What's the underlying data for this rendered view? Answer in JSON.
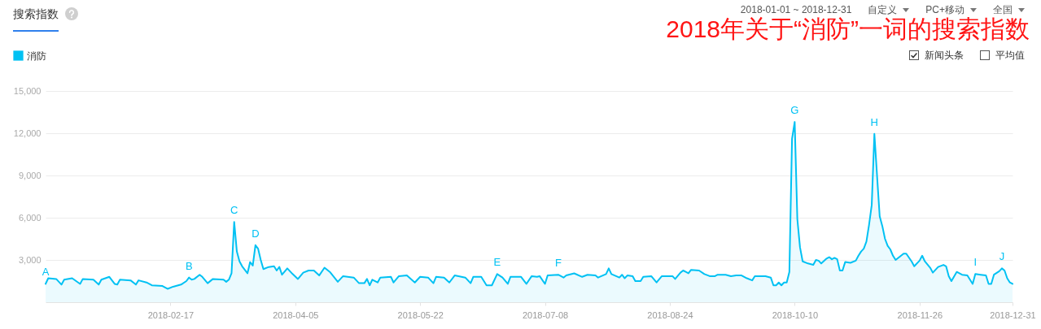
{
  "chart_data": {
    "type": "area",
    "title": "2018年关于“消防”一词的搜索指数",
    "x": [
      "2018-01-01",
      "2018-01-02",
      "2018-01-05",
      "2018-01-07",
      "2018-01-08",
      "2018-01-11",
      "2018-01-14",
      "2018-01-15",
      "2018-01-19",
      "2018-01-21",
      "2018-01-22",
      "2018-01-25",
      "2018-01-27",
      "2018-01-28",
      "2018-01-29",
      "2018-02-02",
      "2018-02-04",
      "2018-02-05",
      "2018-02-08",
      "2018-02-10",
      "2018-02-14",
      "2018-02-16",
      "2018-02-18",
      "2018-02-21",
      "2018-02-23",
      "2018-02-24",
      "2018-02-25",
      "2018-02-26",
      "2018-02-28",
      "2018-03-01",
      "2018-03-03",
      "2018-03-05",
      "2018-03-09",
      "2018-03-10",
      "2018-03-11",
      "2018-03-12",
      "2018-03-13",
      "2018-03-14",
      "2018-03-15",
      "2018-03-16",
      "2018-03-18",
      "2018-03-19",
      "2018-03-20",
      "2018-03-21",
      "2018-03-22",
      "2018-03-23",
      "2018-03-24",
      "2018-03-26",
      "2018-03-28",
      "2018-03-29",
      "2018-03-30",
      "2018-03-31",
      "2018-04-02",
      "2018-04-04",
      "2018-04-06",
      "2018-04-08",
      "2018-04-10",
      "2018-04-12",
      "2018-04-14",
      "2018-04-16",
      "2018-04-18",
      "2018-04-21",
      "2018-04-23",
      "2018-04-27",
      "2018-04-29",
      "2018-05-01",
      "2018-05-02",
      "2018-05-03",
      "2018-05-04",
      "2018-05-06",
      "2018-05-07",
      "2018-05-11",
      "2018-05-12",
      "2018-05-14",
      "2018-05-17",
      "2018-05-20",
      "2018-05-22",
      "2018-05-25",
      "2018-05-27",
      "2018-05-28",
      "2018-05-31",
      "2018-06-02",
      "2018-06-04",
      "2018-06-08",
      "2018-06-10",
      "2018-06-11",
      "2018-06-14",
      "2018-06-16",
      "2018-06-18",
      "2018-06-20",
      "2018-06-22",
      "2018-06-24",
      "2018-06-25",
      "2018-06-29",
      "2018-07-01",
      "2018-07-03",
      "2018-07-05",
      "2018-07-06",
      "2018-07-08",
      "2018-07-09",
      "2018-07-13",
      "2018-07-15",
      "2018-07-16",
      "2018-07-19",
      "2018-07-22",
      "2018-07-24",
      "2018-07-27",
      "2018-07-28",
      "2018-07-31",
      "2018-08-01",
      "2018-08-02",
      "2018-08-05",
      "2018-08-06",
      "2018-08-07",
      "2018-08-08",
      "2018-08-10",
      "2018-08-11",
      "2018-08-13",
      "2018-08-14",
      "2018-08-17",
      "2018-08-19",
      "2018-08-21",
      "2018-08-25",
      "2018-08-26",
      "2018-08-28",
      "2018-08-29",
      "2018-08-30",
      "2018-08-31",
      "2018-09-01",
      "2018-09-04",
      "2018-09-06",
      "2018-09-08",
      "2018-09-10",
      "2018-09-11",
      "2018-09-14",
      "2018-09-16",
      "2018-09-18",
      "2018-09-20",
      "2018-09-22",
      "2018-09-24",
      "2018-09-25",
      "2018-09-29",
      "2018-10-01",
      "2018-10-02",
      "2018-10-03",
      "2018-10-04",
      "2018-10-05",
      "2018-10-06",
      "2018-10-07",
      "2018-10-08",
      "2018-10-09",
      "2018-10-10",
      "2018-10-11",
      "2018-10-12",
      "2018-10-13",
      "2018-10-15",
      "2018-10-17",
      "2018-10-18",
      "2018-10-19",
      "2018-10-20",
      "2018-10-22",
      "2018-10-23",
      "2018-10-24",
      "2018-10-25",
      "2018-10-26",
      "2018-10-27",
      "2018-10-28",
      "2018-10-29",
      "2018-10-31",
      "2018-11-02",
      "2018-11-03",
      "2018-11-04",
      "2018-11-05",
      "2018-11-06",
      "2018-11-07",
      "2018-11-08",
      "2018-11-09",
      "2018-11-10",
      "2018-11-11",
      "2018-11-12",
      "2018-11-13",
      "2018-11-14",
      "2018-11-15",
      "2018-11-16",
      "2018-11-17",
      "2018-11-20",
      "2018-11-21",
      "2018-11-23",
      "2018-11-24",
      "2018-11-26",
      "2018-11-27",
      "2018-11-28",
      "2018-11-30",
      "2018-12-01",
      "2018-12-03",
      "2018-12-05",
      "2018-12-06",
      "2018-12-07",
      "2018-12-08",
      "2018-12-10",
      "2018-12-12",
      "2018-12-14",
      "2018-12-16",
      "2018-12-17",
      "2018-12-19",
      "2018-12-21",
      "2018-12-22",
      "2018-12-23",
      "2018-12-24",
      "2018-12-26",
      "2018-12-27",
      "2018-12-28",
      "2018-12-29",
      "2018-12-30",
      "2018-12-31"
    ],
    "series": [
      {
        "name": "消防",
        "color": "#00c1f3",
        "values": [
          1300,
          1700,
          1650,
          1250,
          1600,
          1700,
          1300,
          1650,
          1600,
          1250,
          1600,
          1800,
          1300,
          1250,
          1600,
          1550,
          1250,
          1550,
          1400,
          1200,
          1150,
          950,
          1100,
          1250,
          1500,
          1750,
          1600,
          1650,
          1950,
          1800,
          1350,
          1650,
          1600,
          1450,
          1600,
          2050,
          5700,
          3600,
          2900,
          2550,
          2050,
          2850,
          2600,
          4050,
          3800,
          3000,
          2350,
          2500,
          2550,
          2250,
          2500,
          1950,
          2400,
          2000,
          1650,
          2100,
          2250,
          2250,
          1900,
          2450,
          2150,
          1450,
          1850,
          1750,
          1350,
          1350,
          1650,
          1200,
          1600,
          1400,
          1750,
          1800,
          1400,
          1850,
          1900,
          1400,
          1800,
          1750,
          1350,
          1800,
          1750,
          1400,
          1900,
          1750,
          1350,
          1800,
          1800,
          1200,
          1200,
          2000,
          1750,
          1300,
          1800,
          1800,
          1300,
          1850,
          1800,
          1850,
          1300,
          1900,
          1950,
          1750,
          1900,
          2050,
          1800,
          1950,
          1900,
          1750,
          2000,
          2400,
          2000,
          1750,
          1950,
          1700,
          1900,
          1850,
          1500,
          1500,
          1800,
          1850,
          1400,
          1850,
          1850,
          1650,
          2100,
          2250,
          2150,
          2050,
          2300,
          2250,
          2000,
          1850,
          1850,
          1950,
          1950,
          1850,
          1900,
          1900,
          1700,
          1550,
          1850,
          1850,
          1750,
          1200,
          1200,
          1400,
          1200,
          1400,
          1400,
          2150,
          11600,
          12800,
          5900,
          3900,
          2900,
          2750,
          2650,
          3000,
          2950,
          2750,
          3100,
          3200,
          3050,
          3150,
          3050,
          2250,
          2250,
          2850,
          2800,
          2950,
          3300,
          3600,
          3800,
          4300,
          5500,
          6900,
          11950,
          9000,
          6100,
          5400,
          4500,
          4000,
          3750,
          3300,
          3000,
          3450,
          3450,
          2900,
          2550,
          2950,
          3300,
          2900,
          2450,
          2100,
          2500,
          2650,
          2550,
          1850,
          1500,
          2150,
          1950,
          1900,
          1300,
          2000,
          1950,
          1900,
          1300,
          1300,
          1950,
          2200,
          2400,
          2250,
          1700,
          1400,
          1300
        ]
      }
    ],
    "xlim": [
      "2018-01-01",
      "2018-12-31"
    ],
    "xticks": [
      "2018-02-17",
      "2018-04-05",
      "2018-05-22",
      "2018-07-08",
      "2018-08-24",
      "2018-10-10",
      "2018-11-26",
      "2018-12-31"
    ],
    "ylim": [
      0,
      15000
    ],
    "yticks": [
      {
        "value": 3000,
        "label": "3,000"
      },
      {
        "value": 6000,
        "label": "6,000"
      },
      {
        "value": 9000,
        "label": "9,000"
      },
      {
        "value": 12000,
        "label": "12,000"
      },
      {
        "value": 15000,
        "label": "15,000"
      }
    ],
    "grid": "y",
    "legend": "top left",
    "annotations": [
      "搜索指数",
      "2018-01-01 ~ 2018-12-31",
      "自定义",
      "PC+移动",
      "全国",
      "新闻头条",
      "平均值",
      {
        "text": "A",
        "x": "2018-01-01",
        "y": 1300
      },
      {
        "text": "B",
        "x": "2018-02-24",
        "y": 1750
      },
      {
        "text": "C",
        "x": "2018-03-13",
        "y": 5700
      },
      {
        "text": "D",
        "x": "2018-03-21",
        "y": 4050
      },
      {
        "text": "E",
        "x": "2018-06-20",
        "y": 2000
      },
      {
        "text": "F",
        "x": "2018-07-13",
        "y": 1950
      },
      {
        "text": "G",
        "x": "2018-10-10",
        "y": 12800
      },
      {
        "text": "H",
        "x": "2018-11-09",
        "y": 11950
      },
      {
        "text": "I",
        "x": "2018-12-17",
        "y": 2000
      },
      {
        "text": "J",
        "x": "2018-12-27",
        "y": 2400
      }
    ]
  }
}
